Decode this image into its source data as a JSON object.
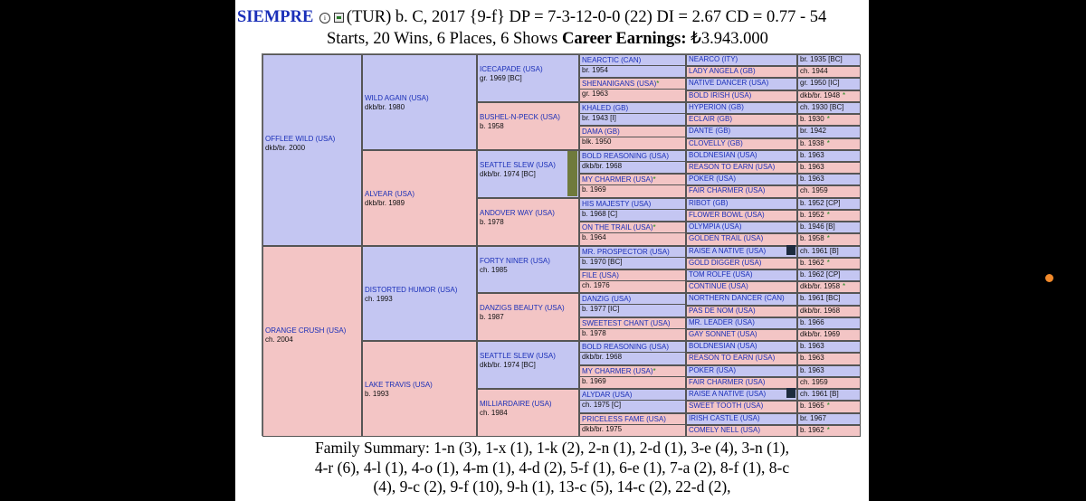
{
  "header": {
    "horse_name": "SIEMPRE",
    "line1_rest": "(TUR) b. C, 2017 {9-f} DP = 7-3-12-0-0 (22) DI = 2.67   CD = 0.77 - 54",
    "line2_text": "Starts, 20 Wins, 6 Places, 6 Shows ",
    "earnings_label": "Career Earnings:",
    "earnings_value": " ₺3.943.000"
  },
  "colors": {
    "male_bg": "#c4c6f2",
    "female_bg": "#f3c5c5",
    "name_link": "#1a2fb8",
    "chef_marker": "#6f7a3c",
    "star": "#1e8a1e"
  },
  "pedigree": {
    "g1": [
      {
        "name": "OFFLEE WILD (USA)",
        "info": "dkb/br. 2000"
      },
      {
        "name": "ORANGE CRUSH (USA)",
        "info": "ch. 2004"
      }
    ],
    "g2": [
      {
        "name": "WILD AGAIN (USA)",
        "info": "dkb/br. 1980"
      },
      {
        "name": "ALVEAR (USA)",
        "info": "dkb/br. 1989"
      },
      {
        "name": "DISTORTED HUMOR (USA)",
        "info": "ch. 1993"
      },
      {
        "name": "LAKE TRAVIS (USA)",
        "info": "b. 1993"
      }
    ],
    "g3": [
      {
        "name": "ICECAPADE (USA)",
        "info": "gr. 1969 [BC]"
      },
      {
        "name": "BUSHEL-N-PECK (USA)",
        "info": "b. 1958"
      },
      {
        "name": "SEATTLE SLEW (USA)",
        "info": "dkb/br. 1974 [BC]"
      },
      {
        "name": "ANDOVER WAY (USA)",
        "info": "b. 1978"
      },
      {
        "name": "FORTY NINER (USA)",
        "info": "ch. 1985"
      },
      {
        "name": "DANZIGS BEAUTY (USA)",
        "info": "b. 1987"
      },
      {
        "name": "SEATTLE SLEW (USA)",
        "info": "dkb/br. 1974 [BC]"
      },
      {
        "name": "MILLIARDAIRE (USA)",
        "info": "ch. 1984"
      }
    ],
    "g4": [
      {
        "name": "NEARCTIC (CAN)",
        "info": "br. 1954"
      },
      {
        "name": "SHENANIGANS (USA)",
        "star": "*",
        "info": "gr. 1963"
      },
      {
        "name": "KHALED (GB)",
        "info": "br. 1943 [I]"
      },
      {
        "name": "DAMA (GB)",
        "info": "blk. 1950"
      },
      {
        "name": "BOLD REASONING (USA)",
        "info": "dkb/br. 1968"
      },
      {
        "name": "MY CHARMER (USA)",
        "star": "*",
        "info": "b. 1969"
      },
      {
        "name": "HIS MAJESTY (USA)",
        "info": "b. 1968 [C]"
      },
      {
        "name": "ON THE TRAIL (USA)",
        "star": "*",
        "info": "b. 1964"
      },
      {
        "name": "MR. PROSPECTOR (USA)",
        "info": "b. 1970 [BC]"
      },
      {
        "name": "FILE (USA)",
        "info": "ch. 1976"
      },
      {
        "name": "DANZIG (USA)",
        "info": "b. 1977 [IC]"
      },
      {
        "name": "SWEETEST CHANT (USA)",
        "info": "b. 1978"
      },
      {
        "name": "BOLD REASONING (USA)",
        "info": "dkb/br. 1968"
      },
      {
        "name": "MY CHARMER (USA)",
        "star": "*",
        "info": "b. 1969"
      },
      {
        "name": "ALYDAR (USA)",
        "info": "ch. 1975 [C]"
      },
      {
        "name": "PRICELESS FAME (USA)",
        "info": "dkb/br. 1975"
      }
    ],
    "g5": [
      {
        "name": "NEARCO (ITY)",
        "info": "br. 1935 [BC]"
      },
      {
        "name": "LADY ANGELA (GB)",
        "info": "ch. 1944"
      },
      {
        "name": "NATIVE DANCER (USA)",
        "info": "gr. 1950 [IC]"
      },
      {
        "name": "BOLD IRISH (USA)",
        "info": "dkb/br. 1948",
        "star": "*"
      },
      {
        "name": "HYPERION (GB)",
        "info": "ch. 1930 [BC]"
      },
      {
        "name": "ECLAIR (GB)",
        "info": "b. 1930",
        "star": "*"
      },
      {
        "name": "DANTE (GB)",
        "info": "br. 1942"
      },
      {
        "name": "CLOVELLY (GB)",
        "info": "b. 1938",
        "star": "*"
      },
      {
        "name": "BOLDNESIAN (USA)",
        "info": "b. 1963"
      },
      {
        "name": "REASON TO EARN (USA)",
        "info": "b. 1963"
      },
      {
        "name": "POKER (USA)",
        "info": "b. 1963"
      },
      {
        "name": "FAIR CHARMER (USA)",
        "info": "ch. 1959"
      },
      {
        "name": "RIBOT (GB)",
        "info": "b. 1952 [CP]"
      },
      {
        "name": "FLOWER BOWL (USA)",
        "info": "b. 1952",
        "star": "*"
      },
      {
        "name": "OLYMPIA (USA)",
        "info": "b. 1946 [B]"
      },
      {
        "name": "GOLDEN TRAIL (USA)",
        "info": "b. 1958",
        "star": "*"
      },
      {
        "name": "RAISE A NATIVE (USA)",
        "info": "ch. 1961 [B]"
      },
      {
        "name": "GOLD DIGGER (USA)",
        "info": "b. 1962",
        "star": "*"
      },
      {
        "name": "TOM ROLFE (USA)",
        "info": "b. 1962 [CP]"
      },
      {
        "name": "CONTINUE (USA)",
        "info": "dkb/br. 1958",
        "star": "*"
      },
      {
        "name": "NORTHERN DANCER (CAN)",
        "info": "b. 1961 [BC]"
      },
      {
        "name": "PAS DE NOM (USA)",
        "info": "dkb/br. 1968"
      },
      {
        "name": "MR. LEADER (USA)",
        "info": "b. 1966"
      },
      {
        "name": "GAY SONNET (USA)",
        "info": "dkb/br. 1969"
      },
      {
        "name": "BOLDNESIAN (USA)",
        "info": "b. 1963"
      },
      {
        "name": "REASON TO EARN (USA)",
        "info": "b. 1963"
      },
      {
        "name": "POKER (USA)",
        "info": "b. 1963"
      },
      {
        "name": "FAIR CHARMER (USA)",
        "info": "ch. 1959"
      },
      {
        "name": "RAISE A NATIVE (USA)",
        "info": "ch. 1961 [B]"
      },
      {
        "name": "SWEET TOOTH (USA)",
        "info": "b. 1965",
        "star": "*"
      },
      {
        "name": "IRISH CASTLE (USA)",
        "info": "br. 1967"
      },
      {
        "name": "COMELY NELL (USA)",
        "info": "b. 1962",
        "star": "*"
      }
    ]
  },
  "footer": {
    "line1": "Family Summary: 1-n (3), 1-x (1), 1-k (2), 2-n (1), 2-d (1), 3-e (4), 3-n (1),",
    "line2": "4-r (6), 4-l (1), 4-o (1), 4-m (1), 4-d (2), 5-f (1), 6-e (1), 7-a (2), 8-f (1), 8-c",
    "line3": "(4), 9-c (2), 9-f (10), 9-h (1), 13-c (5), 14-c (2), 22-d (2),"
  }
}
